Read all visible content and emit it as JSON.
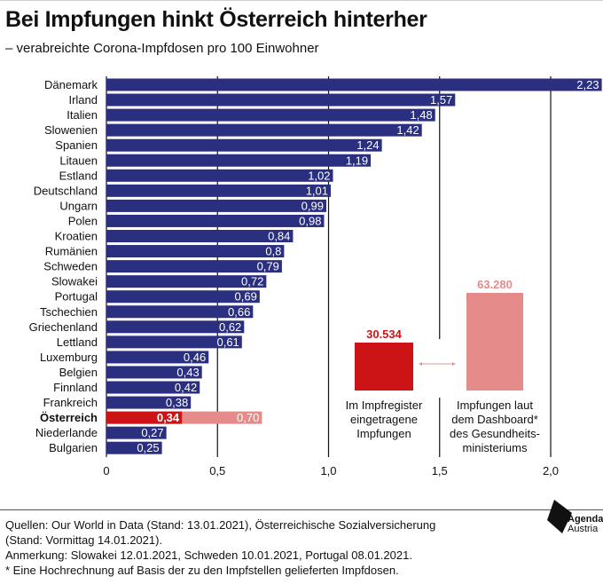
{
  "title": "Bei Impfungen hinkt Österreich hinterher",
  "subtitle": "– verabreichte Corona-Impfdosen pro 100 Einwohner",
  "chart_data": {
    "type": "bar",
    "orientation": "horizontal",
    "categories": [
      "Dänemark",
      "Irland",
      "Italien",
      "Slowenien",
      "Spanien",
      "Litauen",
      "Estland",
      "Deutschland",
      "Ungarn",
      "Polen",
      "Kroatien",
      "Rumänien",
      "Schweden",
      "Slowakei",
      "Portugal",
      "Tschechien",
      "Griechenland",
      "Lettland",
      "Luxemburg",
      "Belgien",
      "Finnland",
      "Frankreich",
      "Österreich",
      "Niederlande",
      "Bulgarien"
    ],
    "values": [
      2.23,
      1.57,
      1.48,
      1.42,
      1.24,
      1.19,
      1.02,
      1.01,
      0.99,
      0.98,
      0.84,
      0.8,
      0.79,
      0.72,
      0.69,
      0.66,
      0.62,
      0.61,
      0.46,
      0.43,
      0.42,
      0.38,
      0.34,
      0.27,
      0.25
    ],
    "value_labels": [
      "2,23",
      "1,57",
      "1,48",
      "1,42",
      "1,24",
      "1,19",
      "1,02",
      "1,01",
      "0,99",
      "0,98",
      "0,84",
      "0,8",
      "0,79",
      "0,72",
      "0,69",
      "0,66",
      "0,62",
      "0,61",
      "0,46",
      "0,43",
      "0,42",
      "0,38",
      "0,34",
      "0,27",
      "0,25"
    ],
    "highlight": {
      "category": "Österreich",
      "dashboard_value": 0.7,
      "dashboard_label": "0,70"
    },
    "xlim": [
      0,
      2.2
    ],
    "xticks": [
      0,
      0.5,
      1.0,
      1.5,
      2.0
    ],
    "xtick_labels": [
      "0",
      "0,5",
      "1,0",
      "1,5",
      "2,0"
    ],
    "grid": true,
    "colors": {
      "bar": "#2b2f80",
      "highlight": "#cc1417",
      "dashboard": "#e58b89"
    }
  },
  "legend": {
    "register_value": "30.534",
    "register_label": [
      "Im Impfregister",
      "eingetragene",
      "Impfungen"
    ],
    "dashboard_value": "63.280",
    "dashboard_label": [
      "Impfungen laut",
      "dem Dashboard*",
      "des Gesundheits-",
      "ministeriums"
    ]
  },
  "footer": {
    "line1": "Quellen: Our World in Data (Stand: 13.01.2021), Österreichische Sozialversicherung",
    "line2": "(Stand: Vormittag 14.01.2021).",
    "line3": "Anmerkung: Slowakei 12.01.2021, Schweden 10.01.2021, Portugal 08.01.2021.",
    "line4": "* Eine Hochrechnung auf Basis der zu den Impfstellen gelieferten Impfdosen."
  },
  "logo": {
    "line1": "Agenda",
    "line2": "Austria",
    "icon": "agenda-austria-logo"
  }
}
